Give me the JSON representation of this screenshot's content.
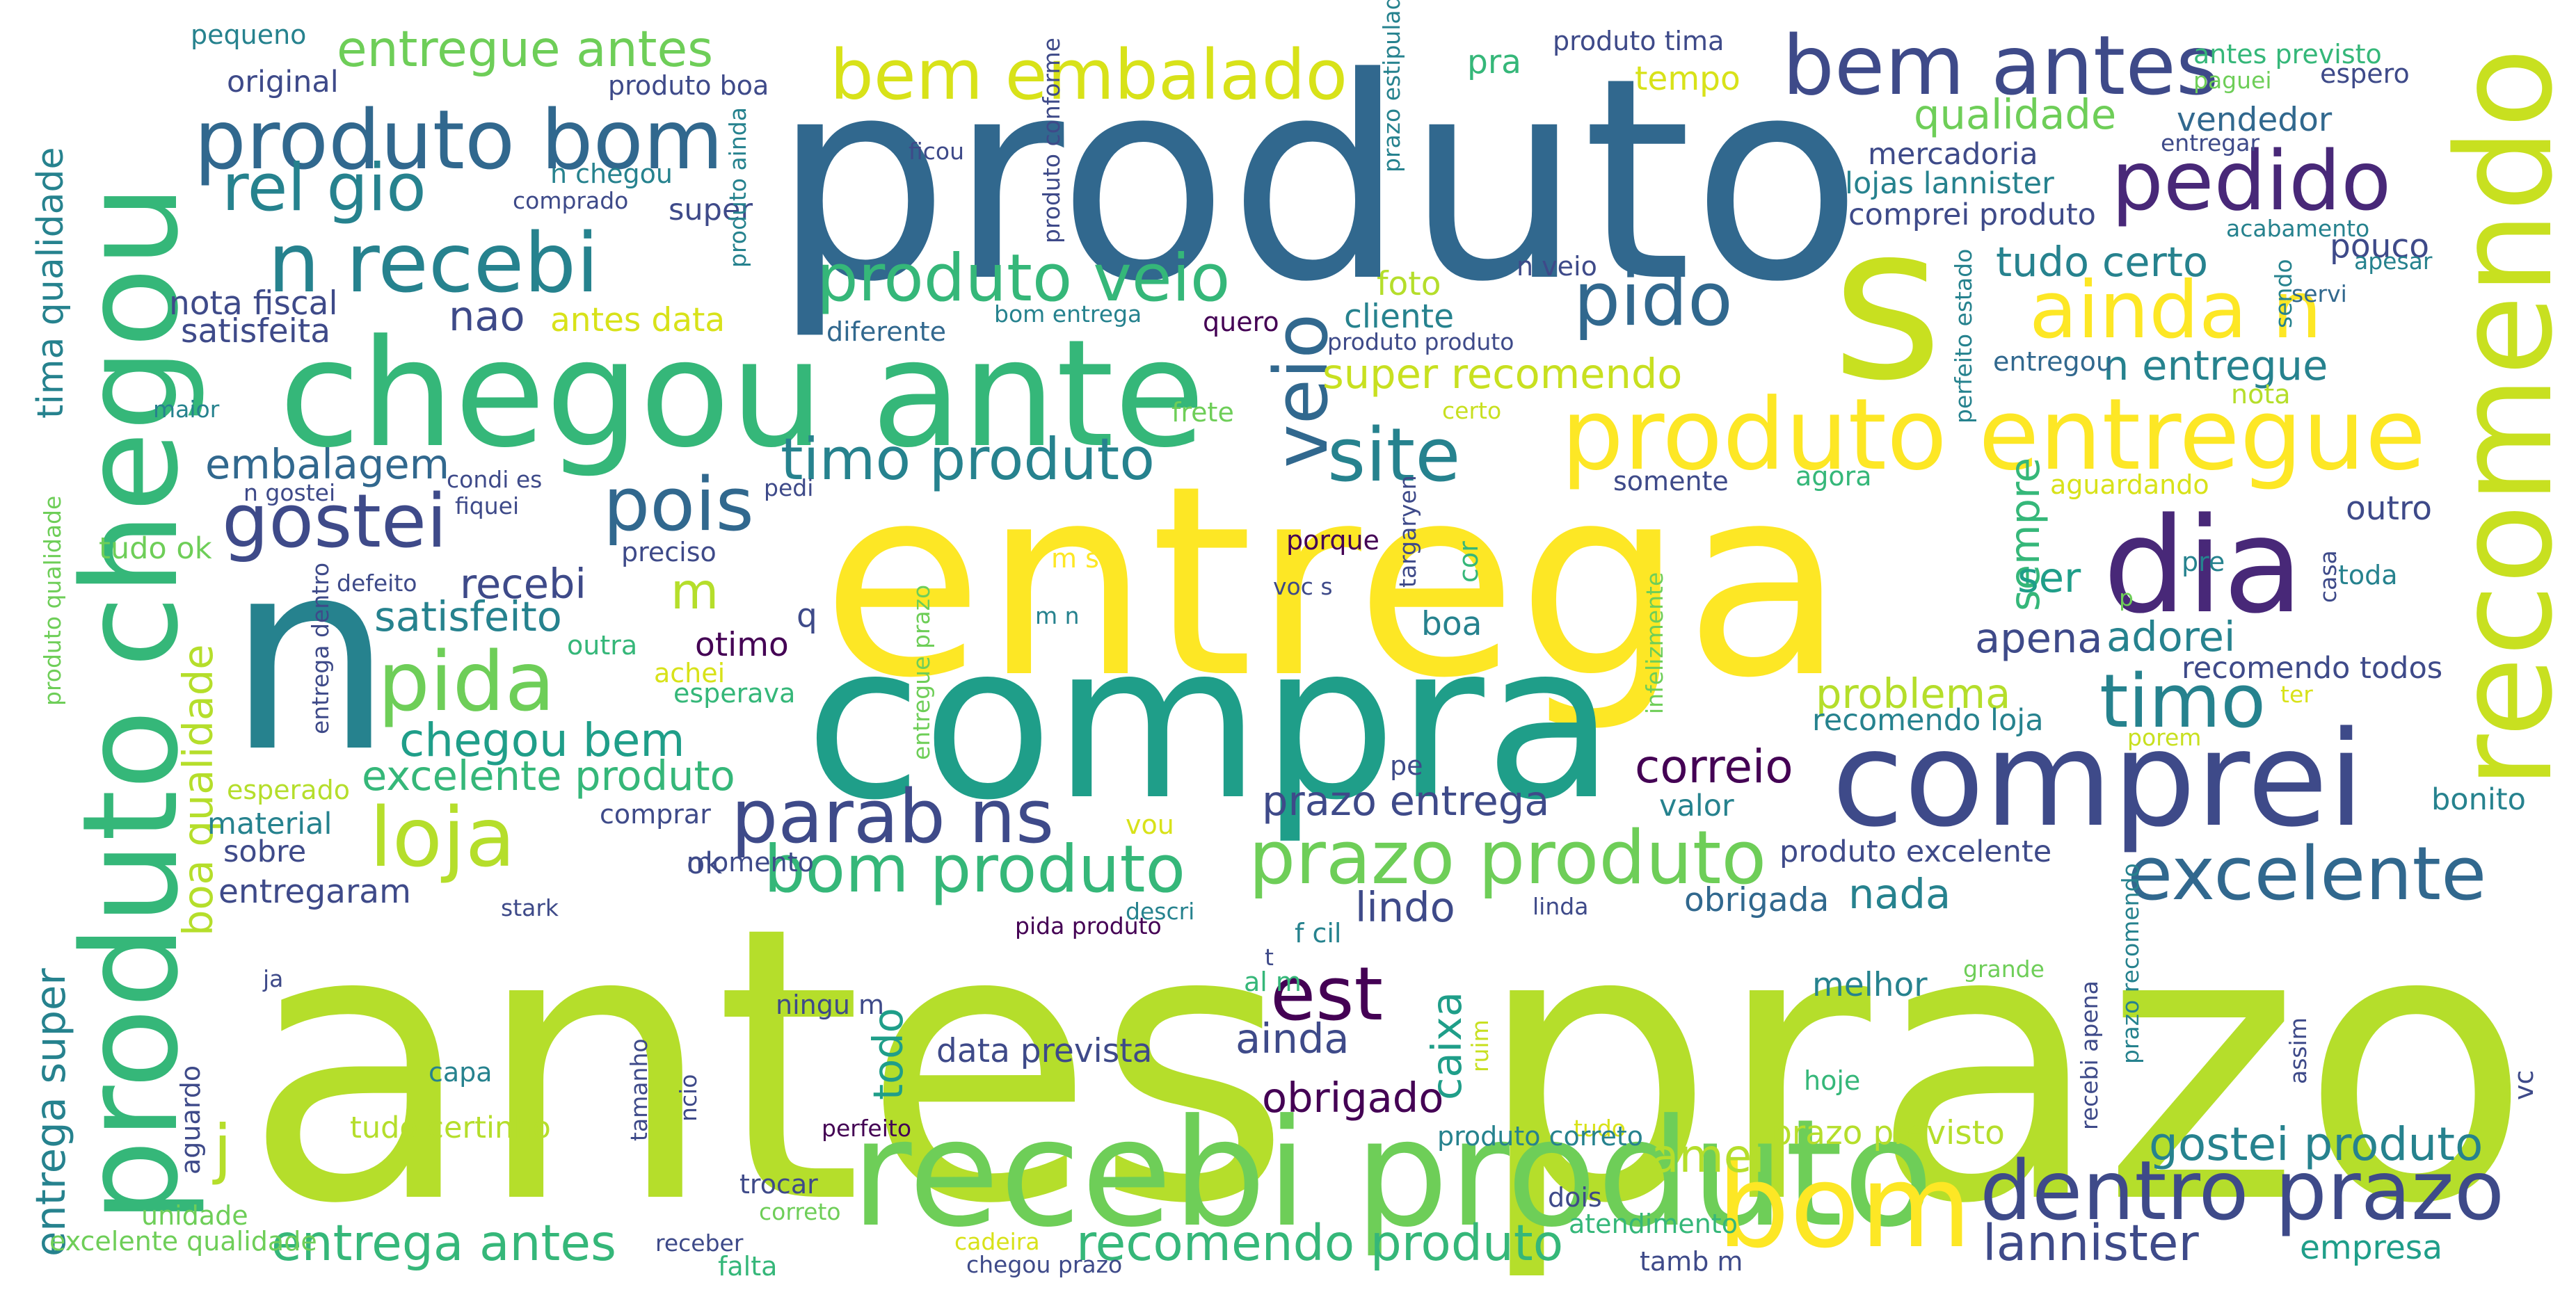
{
  "palette": [
    "#440154",
    "#482878",
    "#3e4a89",
    "#31688e",
    "#26828e",
    "#1f9e89",
    "#35b779",
    "#6ece58",
    "#b5de2b",
    "#fde725"
  ],
  "words": [
    {
      "text": "antes",
      "color": "#b5de2b"
    },
    {
      "text": "prazo",
      "color": "#b5de2b"
    },
    {
      "text": "entrega",
      "color": "#fde725"
    },
    {
      "text": "produto",
      "color": "#31688e"
    },
    {
      "text": "compra",
      "color": "#1f9e89"
    },
    {
      "text": "n",
      "color": "#26828e"
    },
    {
      "text": "s",
      "color": "#c8e020"
    },
    {
      "text": "chegou ante",
      "color": "#35b779"
    },
    {
      "text": "produto chegou",
      "color": "#35b779"
    },
    {
      "text": "recomendo",
      "color": "#c8e020"
    },
    {
      "text": "recebi produto",
      "color": "#6ece58"
    },
    {
      "text": "comprei",
      "color": "#3e4a89"
    },
    {
      "text": "dia",
      "color": "#482878"
    },
    {
      "text": "produto entregue",
      "color": "#fde725"
    },
    {
      "text": "bom",
      "color": "#fde725"
    },
    {
      "text": "produto bom",
      "color": "#31688e"
    },
    {
      "text": "bem antes",
      "color": "#3e4a89"
    },
    {
      "text": "n recebi",
      "color": "#26828e"
    },
    {
      "text": "bem embalado",
      "color": "#d8e219"
    },
    {
      "text": "pedido",
      "color": "#482878"
    },
    {
      "text": "dentro prazo",
      "color": "#3e4a89"
    },
    {
      "text": "ainda n",
      "color": "#fde725"
    },
    {
      "text": "gostei",
      "color": "#3e4a89"
    },
    {
      "text": "loja",
      "color": "#b5de2b"
    },
    {
      "text": "pida",
      "color": "#6ece58"
    },
    {
      "text": "parab ns",
      "color": "#3e4a89"
    },
    {
      "text": "prazo produto",
      "color": "#6ece58"
    },
    {
      "text": "excelente",
      "color": "#31688e"
    },
    {
      "text": "produto veio",
      "color": "#35b779"
    },
    {
      "text": "pido",
      "color": "#31688e"
    },
    {
      "text": "rel gio",
      "color": "#26828e"
    },
    {
      "text": "site",
      "color": "#26828e"
    },
    {
      "text": "pois",
      "color": "#31688e"
    },
    {
      "text": "timo",
      "color": "#26828e"
    },
    {
      "text": "timo produto",
      "color": "#26828e"
    },
    {
      "text": "bom produto",
      "color": "#35b779"
    },
    {
      "text": "veio",
      "color": "#31688e"
    },
    {
      "text": "est",
      "color": "#440154"
    },
    {
      "text": "entrega antes",
      "color": "#35b779"
    },
    {
      "text": "recomendo produto",
      "color": "#35b779"
    },
    {
      "text": "entregue antes",
      "color": "#6ece58"
    },
    {
      "text": "qualidade",
      "color": "#6ece58"
    },
    {
      "text": "correio",
      "color": "#440154"
    },
    {
      "text": "lannister",
      "color": "#3e4a89"
    },
    {
      "text": "chegou bem",
      "color": "#1f9e89"
    },
    {
      "text": "gostei produto",
      "color": "#26828e"
    },
    {
      "text": "j",
      "color": "#b5de2b"
    },
    {
      "text": "tima qualidade",
      "color": "#26828e"
    },
    {
      "text": "entrega super",
      "color": "#26828e"
    },
    {
      "text": "boa qualidade",
      "color": "#b5de2b"
    },
    {
      "text": "satisfeito",
      "color": "#26828e"
    },
    {
      "text": "excelente produto",
      "color": "#35b779"
    },
    {
      "text": "prazo entrega",
      "color": "#3e4a89"
    },
    {
      "text": "tudo certo",
      "color": "#26828e"
    },
    {
      "text": "n entregue",
      "color": "#26828e"
    },
    {
      "text": "super recomendo",
      "color": "#c8e020"
    },
    {
      "text": "embalagem",
      "color": "#31688e"
    },
    {
      "text": "problema",
      "color": "#b5de2b"
    },
    {
      "text": "adorei",
      "color": "#26828e"
    },
    {
      "text": "amei",
      "color": "#b5de2b"
    },
    {
      "text": "lindo",
      "color": "#3e4a89"
    },
    {
      "text": "nada",
      "color": "#26828e"
    },
    {
      "text": "ainda",
      "color": "#3e4a89"
    },
    {
      "text": "caixa",
      "color": "#1f9e89"
    },
    {
      "text": "apena",
      "color": "#3e4a89"
    },
    {
      "text": "sempre",
      "color": "#35b779"
    },
    {
      "text": "nao",
      "color": "#3e4a89"
    },
    {
      "text": "recebi",
      "color": "#3e4a89"
    },
    {
      "text": "m",
      "color": "#b5de2b"
    },
    {
      "text": "ser",
      "color": "#1f9e89"
    },
    {
      "text": "obrigado",
      "color": "#440154"
    },
    {
      "text": "obrigada",
      "color": "#31688e"
    },
    {
      "text": "entregaram",
      "color": "#3e4a89"
    },
    {
      "text": "prazo previsto",
      "color": "#b5de2b"
    },
    {
      "text": "empresa",
      "color": "#1f9e89"
    },
    {
      "text": "todo",
      "color": "#1f9e89"
    },
    {
      "text": "vendedor",
      "color": "#31688e"
    },
    {
      "text": "tempo",
      "color": "#d8e219"
    },
    {
      "text": "pra",
      "color": "#35b779"
    },
    {
      "text": "foto",
      "color": "#b5de2b"
    },
    {
      "text": "cliente",
      "color": "#26828e"
    },
    {
      "text": "data prevista",
      "color": "#3e4a89"
    },
    {
      "text": "antes data",
      "color": "#d8e219"
    },
    {
      "text": "nota fiscal",
      "color": "#3e4a89"
    },
    {
      "text": "satisfeita",
      "color": "#3e4a89"
    },
    {
      "text": "otimo",
      "color": "#440154"
    },
    {
      "text": "boa",
      "color": "#26828e"
    },
    {
      "text": "pouco",
      "color": "#3e4a89"
    },
    {
      "text": "outro",
      "color": "#3e4a89"
    },
    {
      "text": "material",
      "color": "#26828e"
    },
    {
      "text": "sobre",
      "color": "#3e4a89"
    },
    {
      "text": "melhor",
      "color": "#26828e"
    },
    {
      "text": "bonito",
      "color": "#26828e"
    },
    {
      "text": "valor",
      "color": "#26828e"
    },
    {
      "text": "ok",
      "color": "#3e4a89"
    },
    {
      "text": "tudo ok",
      "color": "#6ece58"
    },
    {
      "text": "tudo certinho",
      "color": "#b5de2b"
    },
    {
      "text": "recomendo loja",
      "color": "#26828e"
    },
    {
      "text": "recomendo todos",
      "color": "#3e4a89"
    },
    {
      "text": "produto excelente",
      "color": "#3e4a89"
    },
    {
      "text": "comprei produto",
      "color": "#3e4a89"
    },
    {
      "text": "lojas lannister",
      "color": "#26828e"
    },
    {
      "text": "mercadoria",
      "color": "#3e4a89"
    },
    {
      "text": "super",
      "color": "#3e4a89"
    },
    {
      "text": "original",
      "color": "#3e4a89"
    },
    {
      "text": "pequeno",
      "color": "#26828e"
    },
    {
      "text": "produto boa",
      "color": "#3e4a89"
    },
    {
      "text": "produto tima",
      "color": "#3e4a89"
    },
    {
      "text": "antes previsto",
      "color": "#35b779"
    },
    {
      "text": "paguei",
      "color": "#6ece58"
    },
    {
      "text": "espero",
      "color": "#3e4a89"
    },
    {
      "text": "entregar",
      "color": "#3e4a89"
    },
    {
      "text": "acabamento",
      "color": "#26828e"
    },
    {
      "text": "apesar",
      "color": "#26828e"
    },
    {
      "text": "servi",
      "color": "#31688e"
    },
    {
      "text": "entregou",
      "color": "#31688e"
    },
    {
      "text": "sendo",
      "color": "#26828e"
    },
    {
      "text": "diferente",
      "color": "#31688e"
    },
    {
      "text": "bom entrega",
      "color": "#26828e"
    },
    {
      "text": "quero",
      "color": "#440154"
    },
    {
      "text": "produto produto",
      "color": "#3e4a89"
    },
    {
      "text": "n veio",
      "color": "#3e4a89"
    },
    {
      "text": "n chegou",
      "color": "#26828e"
    },
    {
      "text": "comprado",
      "color": "#3e4a89"
    },
    {
      "text": "frete",
      "color": "#6ece58"
    },
    {
      "text": "certo",
      "color": "#c8e020"
    },
    {
      "text": "condi es",
      "color": "#3e4a89"
    },
    {
      "text": "pedi",
      "color": "#3e4a89"
    },
    {
      "text": "somente",
      "color": "#3e4a89"
    },
    {
      "text": "agora",
      "color": "#35b779"
    },
    {
      "text": "aguardando",
      "color": "#d8e219"
    },
    {
      "text": "preciso",
      "color": "#3e4a89"
    },
    {
      "text": "defeito",
      "color": "#3e4a89"
    },
    {
      "text": "porque",
      "color": "#440154"
    },
    {
      "text": "voc s",
      "color": "#3e4a89"
    },
    {
      "text": "q",
      "color": "#3e4a89"
    },
    {
      "text": "maior",
      "color": "#26828e"
    },
    {
      "text": "n gostei",
      "color": "#3e4a89"
    },
    {
      "text": "fiquei",
      "color": "#3e4a89"
    },
    {
      "text": "outra",
      "color": "#35b779"
    },
    {
      "text": "achei",
      "color": "#d8e219"
    },
    {
      "text": "esperava",
      "color": "#35b779"
    },
    {
      "text": "esperado",
      "color": "#b5de2b"
    },
    {
      "text": "comprar",
      "color": "#3e4a89"
    },
    {
      "text": "vou",
      "color": "#d8e219"
    },
    {
      "text": "momento",
      "color": "#3e4a89"
    },
    {
      "text": "stark",
      "color": "#3e4a89"
    },
    {
      "text": "descri",
      "color": "#26828e"
    },
    {
      "text": "pida produto",
      "color": "#440154"
    },
    {
      "text": "f cil",
      "color": "#26828e"
    },
    {
      "text": "t",
      "color": "#3e4a89"
    },
    {
      "text": "al m",
      "color": "#35b779"
    },
    {
      "text": "ningu m",
      "color": "#3e4a89"
    },
    {
      "text": "ja",
      "color": "#3e4a89"
    },
    {
      "text": "capa",
      "color": "#26828e"
    },
    {
      "text": "trocar",
      "color": "#3e4a89"
    },
    {
      "text": "correto",
      "color": "#6ece58"
    },
    {
      "text": "unidade",
      "color": "#6ece58"
    },
    {
      "text": "receber",
      "color": "#3e4a89"
    },
    {
      "text": "falta",
      "color": "#35b779"
    },
    {
      "text": "cadeira",
      "color": "#d8e219"
    },
    {
      "text": "chegou prazo",
      "color": "#3e4a89"
    },
    {
      "text": "excelente qualidade",
      "color": "#6ece58"
    },
    {
      "text": "perfeito",
      "color": "#440154"
    },
    {
      "text": "dois",
      "color": "#3e4a89"
    },
    {
      "text": "atendimento",
      "color": "#35b779"
    },
    {
      "text": "tamb m",
      "color": "#3e4a89"
    },
    {
      "text": "tudo",
      "color": "#d8e219"
    },
    {
      "text": "hoje",
      "color": "#35b779"
    },
    {
      "text": "grande",
      "color": "#6ece58"
    },
    {
      "text": "linda",
      "color": "#3e4a89"
    },
    {
      "text": "pe",
      "color": "#3e4a89"
    },
    {
      "text": "produto correto",
      "color": "#26828e"
    },
    {
      "text": "porem",
      "color": "#c8e020"
    },
    {
      "text": "ter",
      "color": "#d8e219"
    },
    {
      "text": "pre",
      "color": "#26828e"
    },
    {
      "text": "toda",
      "color": "#26828e"
    },
    {
      "text": "p",
      "color": "#6ece58"
    },
    {
      "text": "m n",
      "color": "#26828e"
    },
    {
      "text": "m s",
      "color": "#fde725"
    },
    {
      "text": "ficou",
      "color": "#3e4a89"
    },
    {
      "text": "nota",
      "color": "#b5de2b"
    },
    {
      "text": "produto conforme",
      "color": "#3e4a89"
    },
    {
      "text": "produto ainda",
      "color": "#26828e"
    },
    {
      "text": "prazo estipulado",
      "color": "#26828e"
    },
    {
      "text": "perfeito estado",
      "color": "#26828e"
    },
    {
      "text": "infelizmente",
      "color": "#6ece58"
    },
    {
      "text": "recebi apena",
      "color": "#3e4a89"
    },
    {
      "text": "prazo recomendo",
      "color": "#26828e"
    },
    {
      "text": "assim",
      "color": "#3e4a89"
    },
    {
      "text": "vc",
      "color": "#3e4a89"
    },
    {
      "text": "casa",
      "color": "#3e4a89"
    },
    {
      "text": "cor",
      "color": "#35b779"
    },
    {
      "text": "targaryen",
      "color": "#3e4a89"
    },
    {
      "text": "entregue prazo",
      "color": "#6ece58"
    },
    {
      "text": "entrega dentro",
      "color": "#3e4a89"
    },
    {
      "text": "produto qualidade",
      "color": "#6ece58"
    },
    {
      "text": "aguardo",
      "color": "#3e4a89"
    },
    {
      "text": "tamanho",
      "color": "#3e4a89"
    },
    {
      "text": "ncio",
      "color": "#3e4a89"
    },
    {
      "text": "ruim",
      "color": "#c8e020"
    }
  ]
}
